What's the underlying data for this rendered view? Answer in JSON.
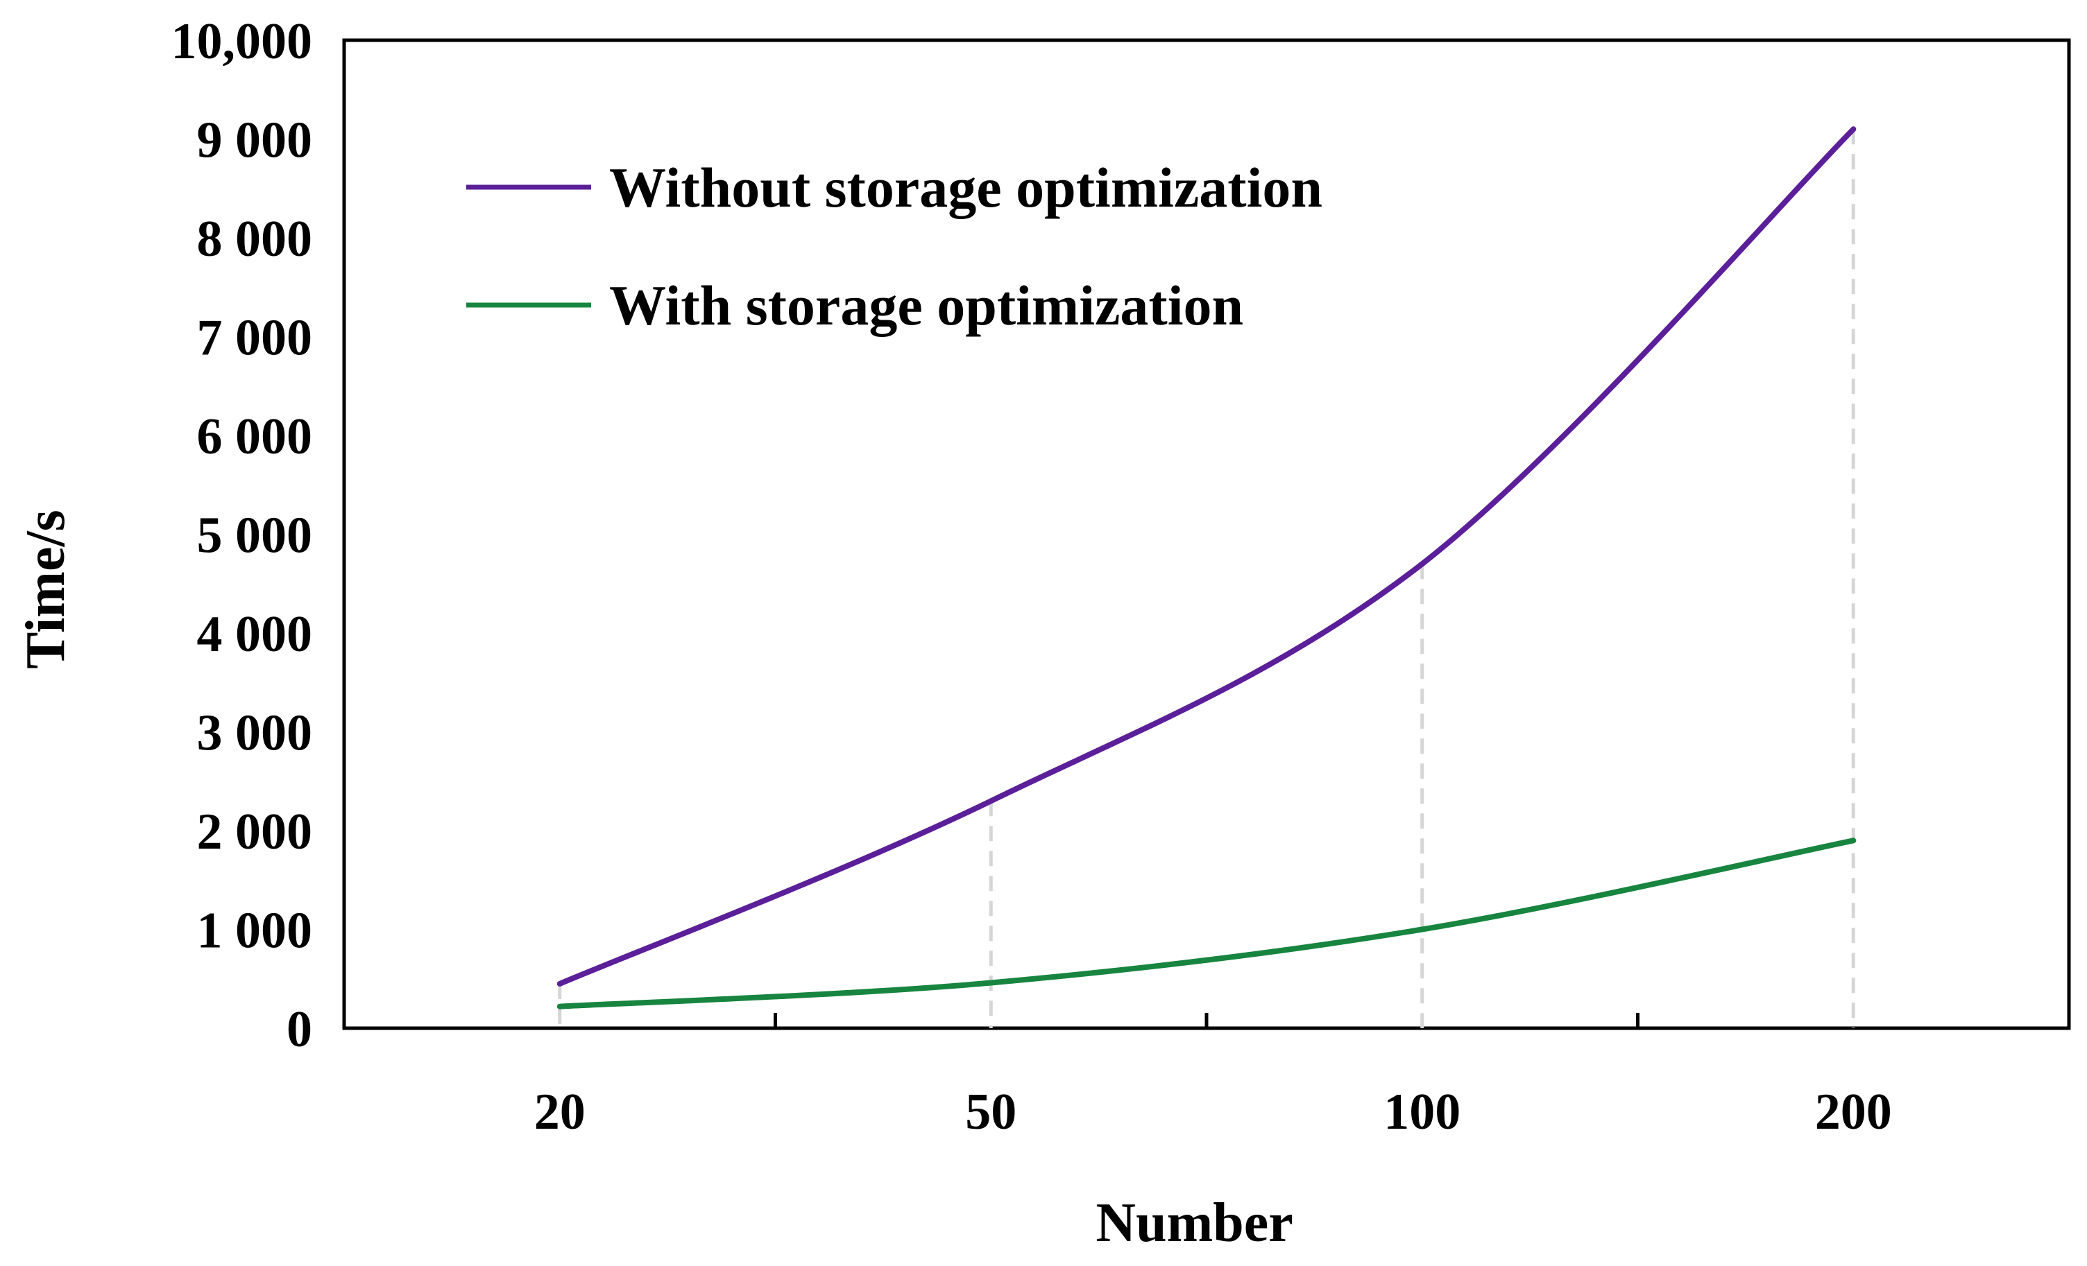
{
  "chart_data": {
    "type": "line",
    "title": "",
    "xlabel": "Number",
    "ylabel": "Time/s",
    "categories": [
      "20",
      "50",
      "100",
      "200"
    ],
    "x_slot_range": [
      -0.5,
      3.5
    ],
    "ylim": [
      0,
      10000
    ],
    "yticks": [
      0,
      1000,
      2000,
      3000,
      4000,
      5000,
      6000,
      7000,
      8000,
      9000,
      10000
    ],
    "ytick_labels": [
      "0",
      "1 000",
      "2 000",
      "3 000",
      "4 000",
      "5 000",
      "6 000",
      "7 000",
      "8 000",
      "9 000",
      "10,000"
    ],
    "grid": false,
    "smooth": true,
    "drop_lines": true,
    "legend_position": "top-left",
    "series": [
      {
        "name": "Without storage optimization",
        "color": "#5b1f99",
        "values": [
          450,
          2300,
          4700,
          9100
        ]
      },
      {
        "name": "With storage optimization",
        "color": "#17853f",
        "values": [
          220,
          460,
          1000,
          1900
        ]
      }
    ],
    "drop_line_color": "#d6d6d6",
    "axis_color": "#000000"
  }
}
